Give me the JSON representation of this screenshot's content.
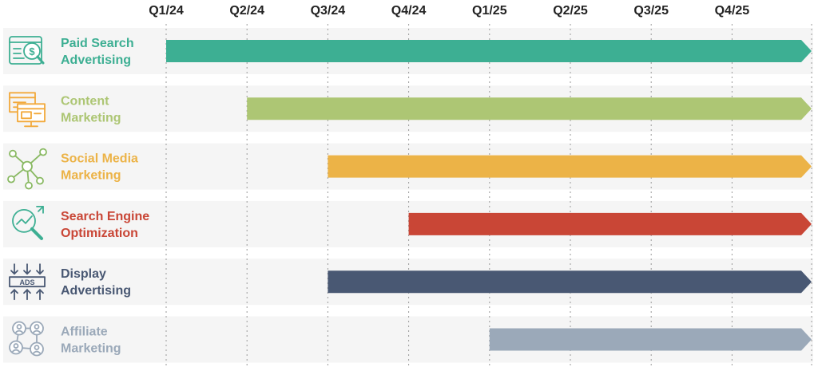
{
  "chart_data": {
    "type": "gantt",
    "title": "",
    "quarters": [
      "Q1/24",
      "Q2/24",
      "Q3/24",
      "Q4/24",
      "Q1/25",
      "Q2/25",
      "Q3/25",
      "Q4/25"
    ],
    "grid": "vertical dotted lines at quarter boundaries",
    "series": [
      {
        "name": "Paid Search Advertising",
        "label_lines": [
          "Paid Search",
          "Advertising"
        ],
        "start": "Q1/24",
        "end": "Q4/25",
        "color": "#3daf93",
        "icon": "search-ad-icon"
      },
      {
        "name": "Content Marketing",
        "label_lines": [
          "Content",
          "Marketing"
        ],
        "start": "Q2/24",
        "end": "Q4/25",
        "color": "#adc674",
        "icon": "content-monitor-icon"
      },
      {
        "name": "Social Media Marketing",
        "label_lines": [
          "Social Media",
          "Marketing"
        ],
        "start": "Q3/24",
        "end": "Q4/25",
        "color": "#ecb347",
        "icon": "network-nodes-icon"
      },
      {
        "name": "Search Engine Optimization",
        "label_lines": [
          "Search Engine",
          "Optimization"
        ],
        "start": "Q4/24",
        "end": "Q4/25",
        "color": "#c94636",
        "icon": "magnifier-chart-icon"
      },
      {
        "name": "Display Advertising",
        "label_lines": [
          "Display",
          "Advertising"
        ],
        "start": "Q3/24",
        "end": "Q4/25",
        "color": "#495873",
        "icon": "ads-banner-icon"
      },
      {
        "name": "Affiliate Marketing",
        "label_lines": [
          "Affiliate",
          "Marketing"
        ],
        "start": "Q1/25",
        "end": "Q4/25",
        "color": "#9ba9b9",
        "icon": "affiliate-network-icon"
      }
    ],
    "icon_colors": [
      "#3daf93",
      "#f2a93b",
      "#89b962",
      "#3daf93",
      "#495873",
      "#9ba9b9"
    ],
    "ads_text": "ADS"
  }
}
